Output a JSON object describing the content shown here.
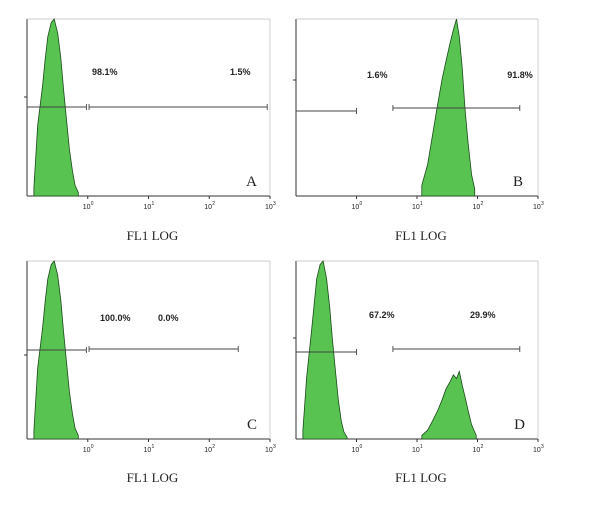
{
  "colors": {
    "histogram_fill": "#59c351",
    "histogram_edge": "#1a4a1a",
    "axis": "#333333",
    "gate": "#444444"
  },
  "chart_data": [
    {
      "type": "area",
      "panel": "A",
      "xlabel": "FL1 LOG",
      "xscale": "log",
      "xlim": [
        0.1,
        1000
      ],
      "xticks": [
        {
          "base": "10",
          "exp": "0"
        },
        {
          "base": "10",
          "exp": "1"
        },
        {
          "base": "10",
          "exp": "2"
        },
        {
          "base": "10",
          "exp": "3"
        }
      ],
      "series": [
        {
          "values_x": [
            0.13,
            0.15,
            0.18,
            0.2,
            0.22,
            0.25,
            0.28,
            0.32,
            0.36,
            0.4,
            0.45,
            0.5,
            0.56,
            0.62,
            0.7
          ],
          "values_y": [
            0.05,
            0.4,
            0.62,
            0.78,
            0.9,
            0.98,
            1.0,
            0.92,
            0.78,
            0.6,
            0.42,
            0.26,
            0.14,
            0.06,
            0.02
          ]
        }
      ],
      "gates": [
        {
          "label": "98.1%",
          "range": [
            0.1,
            0.95
          ]
        },
        {
          "label": "1.5%",
          "range": [
            1.05,
            900
          ]
        }
      ]
    },
    {
      "type": "area",
      "panel": "B",
      "xlabel": "FL1 LOG",
      "xscale": "log",
      "xlim": [
        0.1,
        1000
      ],
      "xticks": [
        {
          "base": "10",
          "exp": "0"
        },
        {
          "base": "10",
          "exp": "1"
        },
        {
          "base": "10",
          "exp": "2"
        },
        {
          "base": "10",
          "exp": "3"
        }
      ],
      "series": [
        {
          "values_x": [
            12,
            15,
            18,
            22,
            26,
            30,
            35,
            40,
            45,
            50,
            56,
            62,
            70,
            80,
            90
          ],
          "values_y": [
            0.06,
            0.18,
            0.34,
            0.52,
            0.66,
            0.76,
            0.86,
            0.94,
            1.0,
            0.9,
            0.72,
            0.5,
            0.3,
            0.12,
            0.04
          ]
        }
      ],
      "gates": [
        {
          "label": "1.6%",
          "range": [
            0.1,
            1.0
          ]
        },
        {
          "label": "91.8%",
          "range": [
            4,
            500
          ]
        }
      ]
    },
    {
      "type": "area",
      "panel": "C",
      "xlabel": "FL1 LOG",
      "xscale": "log",
      "xlim": [
        0.1,
        1000
      ],
      "xticks": [
        {
          "base": "10",
          "exp": "0"
        },
        {
          "base": "10",
          "exp": "1"
        },
        {
          "base": "10",
          "exp": "2"
        },
        {
          "base": "10",
          "exp": "3"
        }
      ],
      "series": [
        {
          "values_x": [
            0.13,
            0.15,
            0.18,
            0.2,
            0.22,
            0.25,
            0.28,
            0.32,
            0.36,
            0.4,
            0.45,
            0.5,
            0.56,
            0.62,
            0.7
          ],
          "values_y": [
            0.05,
            0.4,
            0.62,
            0.78,
            0.9,
            0.98,
            1.0,
            0.92,
            0.78,
            0.6,
            0.42,
            0.26,
            0.14,
            0.06,
            0.02
          ]
        }
      ],
      "gates": [
        {
          "label": "100.0%",
          "range": [
            0.1,
            0.95
          ]
        },
        {
          "label": "0.0%",
          "range": [
            1.05,
            300
          ]
        }
      ]
    },
    {
      "type": "area",
      "panel": "D",
      "xlabel": "FL1 LOG",
      "xscale": "log",
      "xlim": [
        0.1,
        1000
      ],
      "xticks": [
        {
          "base": "10",
          "exp": "0"
        },
        {
          "base": "10",
          "exp": "1"
        },
        {
          "base": "10",
          "exp": "2"
        },
        {
          "base": "10",
          "exp": "3"
        }
      ],
      "series": [
        {
          "values_x": [
            0.13,
            0.15,
            0.18,
            0.2,
            0.22,
            0.25,
            0.28,
            0.32,
            0.36,
            0.4,
            0.45,
            0.5,
            0.56,
            0.62,
            0.7
          ],
          "values_y": [
            0.05,
            0.35,
            0.6,
            0.76,
            0.9,
            0.98,
            1.0,
            0.9,
            0.74,
            0.56,
            0.38,
            0.22,
            0.1,
            0.04,
            0.01
          ]
        },
        {
          "values_x": [
            12,
            15,
            18,
            22,
            26,
            30,
            35,
            40,
            45,
            50,
            56,
            62,
            70,
            80,
            95
          ],
          "values_y": [
            0.02,
            0.05,
            0.1,
            0.16,
            0.22,
            0.28,
            0.32,
            0.36,
            0.34,
            0.38,
            0.3,
            0.24,
            0.16,
            0.08,
            0.02
          ]
        }
      ],
      "gates": [
        {
          "label": "67.2%",
          "range": [
            0.1,
            1.0
          ]
        },
        {
          "label": "29.9%",
          "range": [
            4,
            500
          ]
        }
      ]
    }
  ]
}
